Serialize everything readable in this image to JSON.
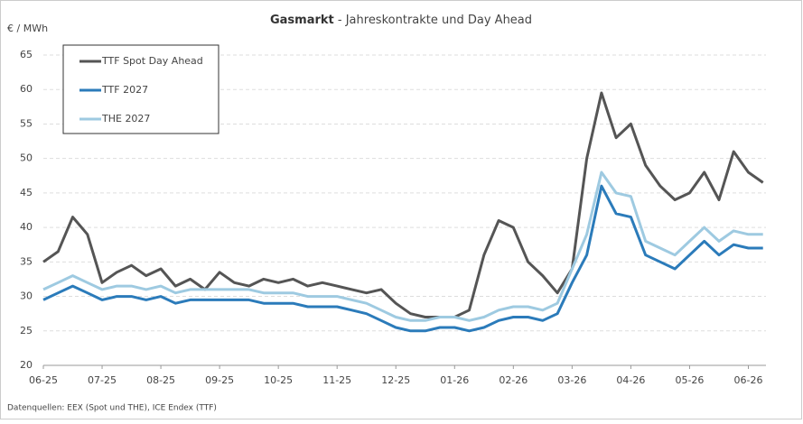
{
  "chart_data": {
    "type": "line",
    "title_bold": "Gasmarkt",
    "title": "- Jahreskontrakte und Day Ahead",
    "y_label": "€ / MWh",
    "source": "Datenquellen: EEX (Spot und THE), ICE Endex (TTF)",
    "categories": [
      "06-25",
      null,
      null,
      null,
      "07-25",
      null,
      null,
      null,
      "08-25",
      null,
      null,
      null,
      "09-25",
      null,
      null,
      null,
      "10-25",
      null,
      null,
      null,
      "11-25",
      null,
      null,
      null,
      "12-25",
      null,
      null,
      null,
      "01-26",
      null,
      null,
      null,
      "02-26",
      null,
      null,
      null,
      "03-26",
      null,
      null,
      null,
      "04-26",
      null,
      null,
      null,
      "05-26",
      null,
      null,
      null,
      "06-26",
      null
    ],
    "ylim": [
      20,
      65
    ],
    "yticks": [
      20,
      25,
      30,
      35,
      40,
      45,
      50,
      55,
      60,
      65
    ],
    "grid": true,
    "legend": "top-left",
    "series": [
      {
        "name": "TTF Spot Day Ahead",
        "color": "#555555",
        "values": [
          35,
          36.5,
          41.5,
          39,
          32,
          33.5,
          34.5,
          33,
          34,
          31.5,
          32.5,
          31,
          33.5,
          32,
          31.5,
          32.5,
          32,
          32.5,
          31.5,
          32,
          31.5,
          31,
          30.5,
          31,
          29,
          27.5,
          27,
          27,
          27,
          28,
          36,
          41,
          40,
          35,
          33,
          30.5,
          34,
          50,
          59.5,
          53,
          55,
          49,
          46,
          44,
          45,
          48,
          44,
          51,
          48,
          46.5
        ]
      },
      {
        "name": "TTF 2027",
        "color": "#2b7bba",
        "values": [
          29.5,
          30.5,
          31.5,
          30.5,
          29.5,
          30,
          30,
          29.5,
          30,
          29,
          29.5,
          29.5,
          29.5,
          29.5,
          29.5,
          29,
          29,
          29,
          28.5,
          28.5,
          28.5,
          28,
          27.5,
          26.5,
          25.5,
          25,
          25,
          25.5,
          25.5,
          25,
          25.5,
          26.5,
          27,
          27,
          26.5,
          27.5,
          32,
          36,
          46,
          42,
          41.5,
          36,
          35,
          34,
          36,
          38,
          36,
          37.5,
          37,
          37
        ]
      },
      {
        "name": "THE 2027",
        "color": "#9ecae1",
        "values": [
          31,
          32,
          33,
          32,
          31,
          31.5,
          31.5,
          31,
          31.5,
          30.5,
          31,
          31,
          31,
          31,
          31,
          30.5,
          30.5,
          30.5,
          30,
          30,
          30,
          29.5,
          29,
          28,
          27,
          26.5,
          26.5,
          27,
          27,
          26.5,
          27,
          28,
          28.5,
          28.5,
          28,
          29,
          34,
          39,
          48,
          45,
          44.5,
          38,
          37,
          36,
          38,
          40,
          38,
          39.5,
          39,
          39
        ]
      }
    ]
  }
}
